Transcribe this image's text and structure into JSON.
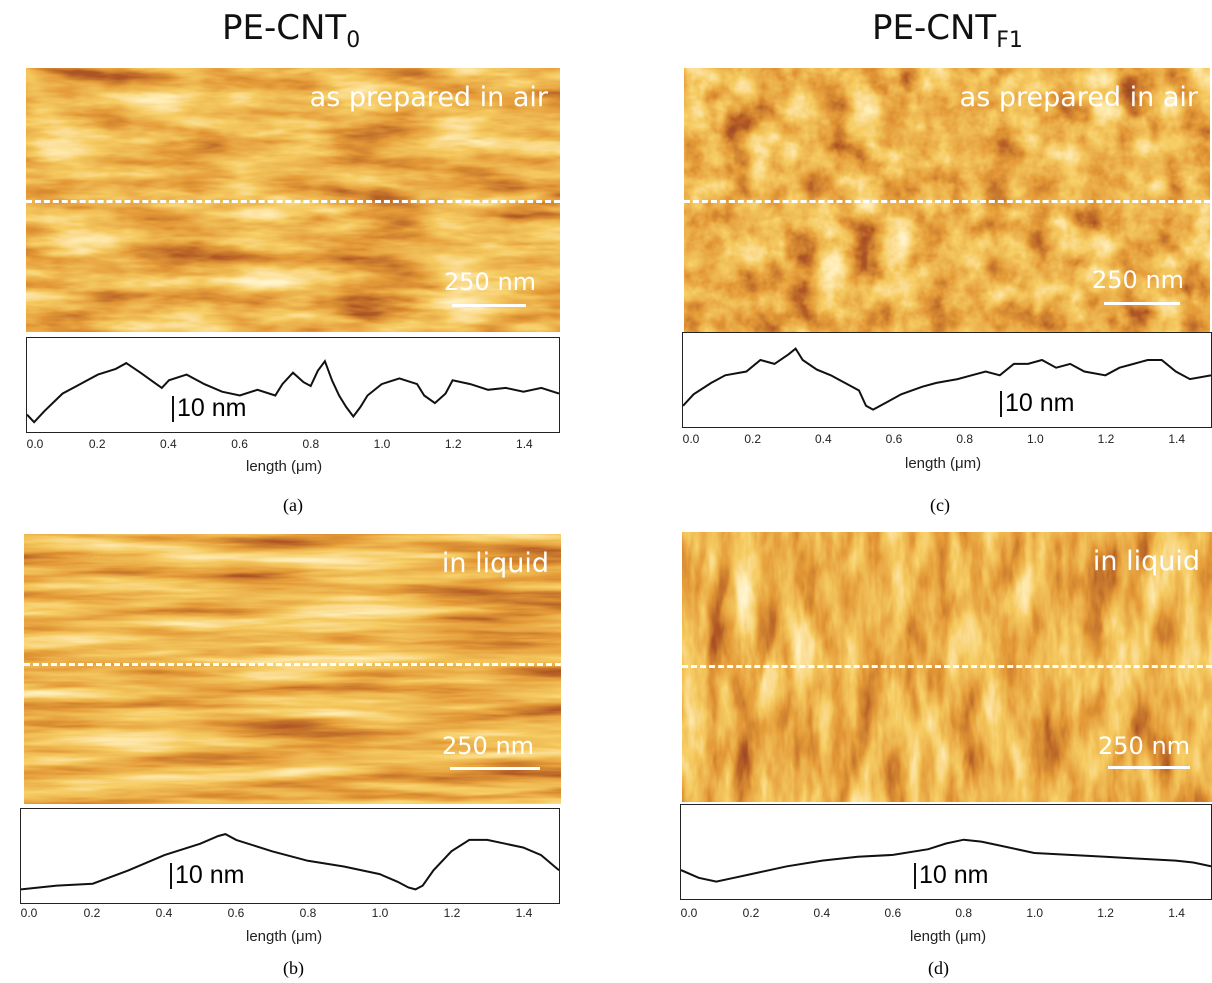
{
  "columns": [
    {
      "title_main": "PE-CNT",
      "title_sub": "0"
    },
    {
      "title_main": "PE-CNT",
      "title_sub": "F1"
    }
  ],
  "panels": [
    {
      "id": "a",
      "label": "(a)",
      "mode": "as prepared  in air",
      "scale_bar": "250 nm",
      "z_scale": "10 nm",
      "xlabel": "length (μm)",
      "ticks": [
        "0.0",
        "0.2",
        "0.4",
        "0.6",
        "0.8",
        "1.0",
        "1.2",
        "1.4"
      ],
      "profile": {
        "x": [
          0,
          0.02,
          0.05,
          0.1,
          0.15,
          0.2,
          0.25,
          0.28,
          0.32,
          0.35,
          0.38,
          0.4,
          0.45,
          0.5,
          0.55,
          0.6,
          0.65,
          0.7,
          0.72,
          0.75,
          0.78,
          0.8,
          0.82,
          0.84,
          0.86,
          0.88,
          0.9,
          0.92,
          0.94,
          0.96,
          1.0,
          1.05,
          1.1,
          1.12,
          1.15,
          1.18,
          1.2,
          1.25,
          1.3,
          1.35,
          1.4,
          1.45,
          1.5
        ],
        "y": [
          4,
          0,
          6,
          15,
          20,
          25,
          28,
          31,
          26,
          22,
          18,
          22,
          25,
          20,
          16,
          14,
          17,
          14,
          20,
          26,
          21,
          19,
          27,
          32,
          22,
          14,
          8,
          3,
          8,
          14,
          20,
          23,
          20,
          14,
          10,
          15,
          22,
          20,
          17,
          18,
          16,
          18,
          15
        ]
      }
    },
    {
      "id": "b",
      "label": "(b)",
      "mode": "in liquid",
      "scale_bar": "250 nm",
      "z_scale": "10 nm",
      "xlabel": "length (μm)",
      "ticks": [
        "0.0",
        "0.2",
        "0.4",
        "0.6",
        "0.8",
        "1.0",
        "1.2",
        "1.4"
      ],
      "profile": {
        "x": [
          0,
          0.05,
          0.1,
          0.2,
          0.3,
          0.4,
          0.5,
          0.55,
          0.57,
          0.6,
          0.7,
          0.8,
          0.9,
          1.0,
          1.05,
          1.08,
          1.1,
          1.12,
          1.15,
          1.2,
          1.25,
          1.3,
          1.35,
          1.4,
          1.45,
          1.5
        ],
        "y": [
          2,
          3,
          4,
          5,
          12,
          20,
          26,
          30,
          31,
          28,
          22,
          17,
          14,
          10,
          6,
          3,
          2,
          4,
          12,
          22,
          28,
          28,
          26,
          24,
          20,
          12
        ]
      }
    },
    {
      "id": "c",
      "label": "(c)",
      "mode": "as prepared  in air",
      "scale_bar": "250 nm",
      "z_scale": "10 nm",
      "xlabel": "length (μm)",
      "ticks": [
        "0.0",
        "0.2",
        "0.4",
        "0.6",
        "0.8",
        "1.0",
        "1.2",
        "1.4"
      ],
      "profile": {
        "x": [
          0,
          0.03,
          0.08,
          0.12,
          0.18,
          0.22,
          0.26,
          0.3,
          0.32,
          0.34,
          0.38,
          0.42,
          0.46,
          0.5,
          0.52,
          0.54,
          0.58,
          0.62,
          0.68,
          0.72,
          0.78,
          0.82,
          0.86,
          0.9,
          0.94,
          0.98,
          1.02,
          1.06,
          1.1,
          1.14,
          1.2,
          1.24,
          1.28,
          1.32,
          1.36,
          1.4,
          1.44,
          1.5
        ],
        "y": [
          6,
          12,
          18,
          22,
          24,
          30,
          28,
          33,
          36,
          30,
          25,
          22,
          18,
          14,
          6,
          4,
          8,
          12,
          16,
          18,
          20,
          22,
          24,
          22,
          28,
          28,
          30,
          26,
          28,
          24,
          22,
          26,
          28,
          30,
          30,
          24,
          20,
          22
        ]
      }
    },
    {
      "id": "d",
      "label": "(d)",
      "mode": "in liquid",
      "scale_bar": "250 nm",
      "z_scale": "10 nm",
      "xlabel": "length (μm)",
      "ticks": [
        "0.0",
        "0.2",
        "0.4",
        "0.6",
        "0.8",
        "1.0",
        "1.2",
        "1.4"
      ],
      "profile": {
        "x": [
          0,
          0.05,
          0.1,
          0.15,
          0.2,
          0.3,
          0.4,
          0.5,
          0.6,
          0.7,
          0.75,
          0.8,
          0.85,
          0.9,
          1.0,
          1.1,
          1.2,
          1.3,
          1.4,
          1.45,
          1.5
        ],
        "y": [
          10,
          6,
          4,
          6,
          8,
          12,
          15,
          17,
          18,
          21,
          24,
          26,
          25,
          23,
          19,
          18,
          17,
          16,
          15,
          14,
          12
        ]
      }
    }
  ]
}
